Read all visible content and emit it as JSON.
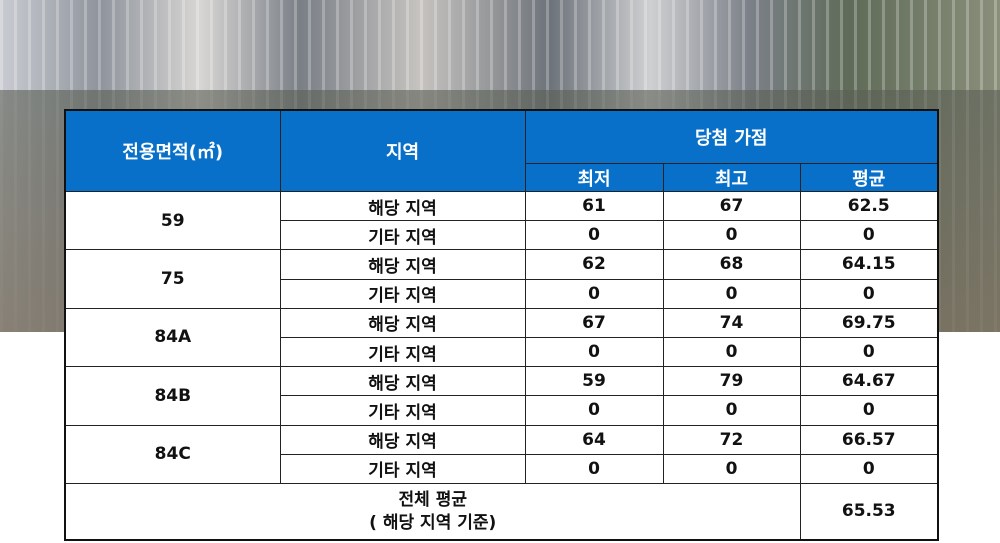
{
  "header": {
    "area": "전용면적(㎡)",
    "region": "지역",
    "score_group": "당첨 가점",
    "min": "최저",
    "max": "최고",
    "avg": "평균"
  },
  "colors": {
    "header_bg": "#0870c8",
    "header_text": "#ffffff"
  },
  "rows": [
    {
      "area": "59",
      "sub": [
        {
          "region": "해당 지역",
          "min": "61",
          "max": "67",
          "avg": "62.5"
        },
        {
          "region": "기타 지역",
          "min": "0",
          "max": "0",
          "avg": "0"
        }
      ]
    },
    {
      "area": "75",
      "sub": [
        {
          "region": "해당 지역",
          "min": "62",
          "max": "68",
          "avg": "64.15"
        },
        {
          "region": "기타 지역",
          "min": "0",
          "max": "0",
          "avg": "0"
        }
      ]
    },
    {
      "area": "84A",
      "sub": [
        {
          "region": "해당 지역",
          "min": "67",
          "max": "74",
          "avg": "69.75"
        },
        {
          "region": "기타 지역",
          "min": "0",
          "max": "0",
          "avg": "0"
        }
      ]
    },
    {
      "area": "84B",
      "sub": [
        {
          "region": "해당 지역",
          "min": "59",
          "max": "79",
          "avg": "64.67"
        },
        {
          "region": "기타 지역",
          "min": "0",
          "max": "0",
          "avg": "0"
        }
      ]
    },
    {
      "area": "84C",
      "sub": [
        {
          "region": "해당 지역",
          "min": "64",
          "max": "72",
          "avg": "66.57"
        },
        {
          "region": "기타 지역",
          "min": "0",
          "max": "0",
          "avg": "0"
        }
      ]
    }
  ],
  "total": {
    "label_line1": "전체 평균",
    "label_line2": "( 해당 지역 기준)",
    "value": "65.53"
  }
}
